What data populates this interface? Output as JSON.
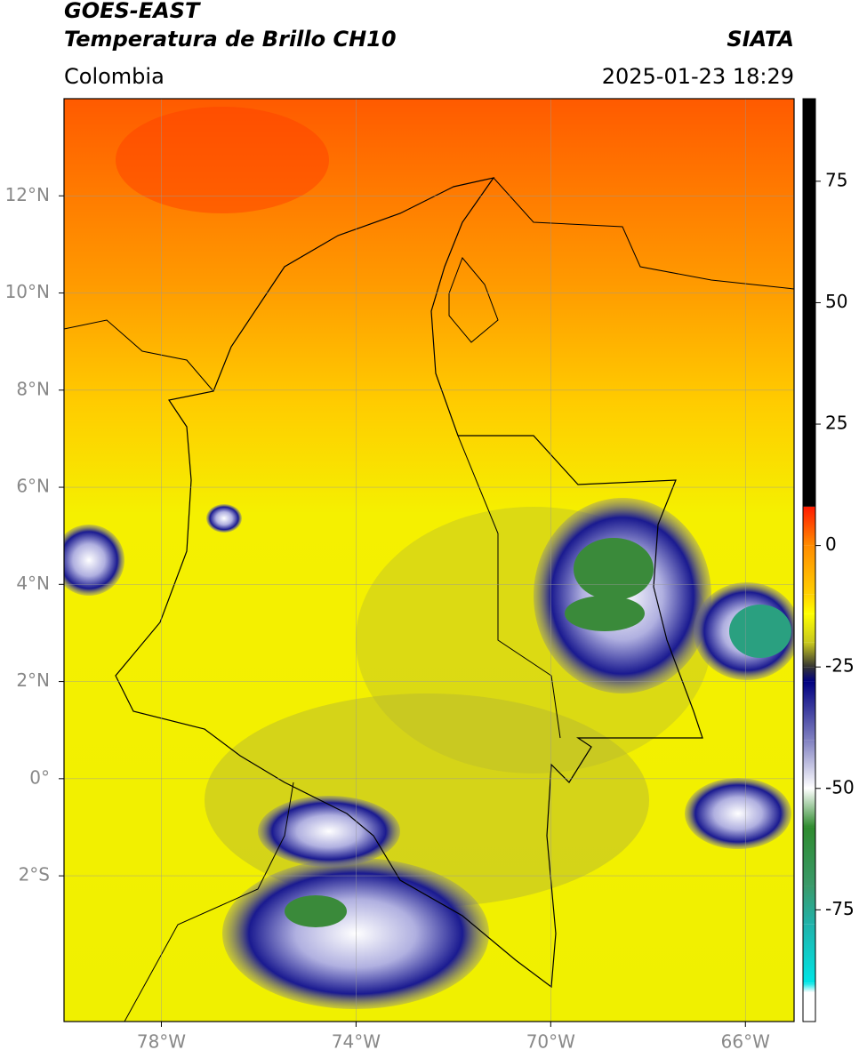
{
  "header": {
    "line1": "GOES-EAST",
    "title": "Temperatura de Brillo CH10",
    "source": "SIATA",
    "region": "Colombia",
    "datetime": "2025-01-23 18:29"
  },
  "map": {
    "xlim": [
      -80,
      -65
    ],
    "ylim": [
      -5,
      14
    ],
    "xticks": [
      {
        "value": -78,
        "label": "78°W"
      },
      {
        "value": -74,
        "label": "74°W"
      },
      {
        "value": -70,
        "label": "70°W"
      },
      {
        "value": -66,
        "label": "66°W"
      }
    ],
    "yticks": [
      {
        "value": 12,
        "label": "12°N"
      },
      {
        "value": 10,
        "label": "10°N"
      },
      {
        "value": 8,
        "label": "8°N"
      },
      {
        "value": 6,
        "label": "6°N"
      },
      {
        "value": 4,
        "label": "4°N"
      },
      {
        "value": 2,
        "label": "2°N"
      },
      {
        "value": 0,
        "label": "0°"
      },
      {
        "value": -2,
        "label": "2°S"
      }
    ],
    "grid": true
  },
  "colorbar": {
    "range": [
      -98,
      92
    ],
    "ticks": [
      75,
      50,
      25,
      0,
      -25,
      -50,
      -75
    ],
    "stops": [
      {
        "value": 92,
        "color": "#000000"
      },
      {
        "value": 8,
        "color": "#000000"
      },
      {
        "value": 8,
        "color": "#ff1a00"
      },
      {
        "value": 0,
        "color": "#ff8c00"
      },
      {
        "value": -10,
        "color": "#ffd000"
      },
      {
        "value": -14,
        "color": "#ffff00"
      },
      {
        "value": -20,
        "color": "#c8c81e"
      },
      {
        "value": -25,
        "color": "#333333"
      },
      {
        "value": -28,
        "color": "#000080"
      },
      {
        "value": -40,
        "color": "#8080c0"
      },
      {
        "value": -50,
        "color": "#ffffff"
      },
      {
        "value": -58,
        "color": "#2e8b2e"
      },
      {
        "value": -70,
        "color": "#3a9a6a"
      },
      {
        "value": -78,
        "color": "#20b2aa"
      },
      {
        "value": -90,
        "color": "#00e5e5"
      },
      {
        "value": -92,
        "color": "#ffffff"
      },
      {
        "value": -98,
        "color": "#ffffff"
      }
    ]
  }
}
